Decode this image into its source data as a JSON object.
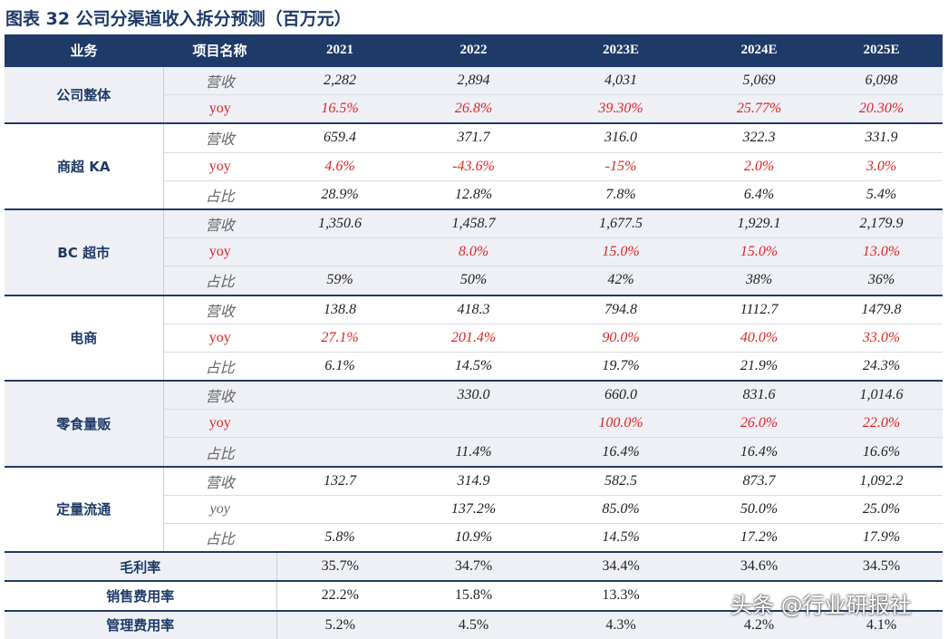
{
  "title": "图表 32 公司分渠道收入拆分预测（百万元）",
  "table": {
    "header": [
      "业务",
      "项目名称",
      "2021",
      "2022",
      "2023E",
      "2024E",
      "2025E"
    ],
    "groups": [
      {
        "name": "公司整体",
        "rows": [
          {
            "cells": [
              "营收",
              "2,282",
              "2,894",
              "4,031",
              "5,069",
              "6,098"
            ]
          },
          {
            "cells": [
              "yoy",
              "16.5%",
              "26.8%",
              "39.30%",
              "25.77%",
              "20.30%"
            ],
            "color": "#e02424"
          }
        ]
      },
      {
        "name": "商超 KA",
        "rows": [
          {
            "cells": [
              "营收",
              "659.4",
              "371.7",
              "316.0",
              "322.3",
              "331.9"
            ]
          },
          {
            "cells": [
              "yoy",
              "4.6%",
              "-43.6%",
              "-15%",
              "2.0%",
              "3.0%"
            ],
            "color": "#e02424"
          },
          {
            "cells": [
              "占比",
              "28.9%",
              "12.8%",
              "7.8%",
              "6.4%",
              "5.4%"
            ]
          }
        ]
      },
      {
        "name": "BC 超市",
        "rows": [
          {
            "cells": [
              "营收",
              "1,350.6",
              "1,458.7",
              "1,677.5",
              "1,929.1",
              "2,179.9"
            ]
          },
          {
            "cells": [
              "yoy",
              null,
              "8.0%",
              "15.0%",
              "15.0%",
              "13.0%"
            ],
            "color": "#e02424"
          },
          {
            "cells": [
              "占比",
              "59%",
              "50%",
              "42%",
              "38%",
              "36%"
            ]
          }
        ]
      },
      {
        "name": "电商",
        "rows": [
          {
            "cells": [
              "营收",
              "138.8",
              "418.3",
              "794.8",
              "1112.7",
              "1479.8"
            ]
          },
          {
            "cells": [
              "yoy",
              "27.1%",
              "201.4%",
              "90.0%",
              "40.0%",
              "33.0%"
            ],
            "color": "#e02424"
          },
          {
            "cells": [
              "占比",
              "6.1%",
              "14.5%",
              "19.7%",
              "21.9%",
              "24.3%"
            ]
          }
        ]
      },
      {
        "name": "零食量贩",
        "rows": [
          {
            "cells": [
              "营收",
              null,
              "330.0",
              "660.0",
              "831.6",
              "1,014.6"
            ]
          },
          {
            "cells": [
              "yoy",
              null,
              null,
              "100.0%",
              "26.0%",
              "22.0%"
            ],
            "color": "#e02424"
          },
          {
            "cells": [
              "占比",
              null,
              "11.4%",
              "16.4%",
              "16.4%",
              "16.6%"
            ]
          }
        ]
      },
      {
        "name": "定量流通",
        "rows": [
          {
            "cells": [
              "营收",
              "132.7",
              "314.9",
              "582.5",
              "873.7",
              "1,092.2"
            ]
          },
          {
            "cells": [
              "yoy",
              "137.2%",
              "85.0%",
              "50.0%",
              "25.0%"
            ],
            "offset": 1
          },
          {
            "cells": [
              "占比",
              "5.8%",
              "10.9%",
              "14.5%",
              "17.2%",
              "17.9%"
            ]
          }
        ]
      }
    ],
    "summary": [
      {
        "name": "毛利率",
        "cells": [
          "35.7%",
          "34.7%",
          "34.4%",
          "34.6%",
          "34.5%"
        ]
      },
      {
        "name": "销售费用率",
        "cells": [
          "22.2%",
          "15.8%",
          "13.3%"
        ]
      },
      {
        "name": "管理费用率",
        "cells": [
          "5.2%",
          "4.5%",
          "4.3%",
          "4.2%",
          "4.1%"
        ]
      }
    ]
  },
  "watermark": "头条 @行业研报社"
}
